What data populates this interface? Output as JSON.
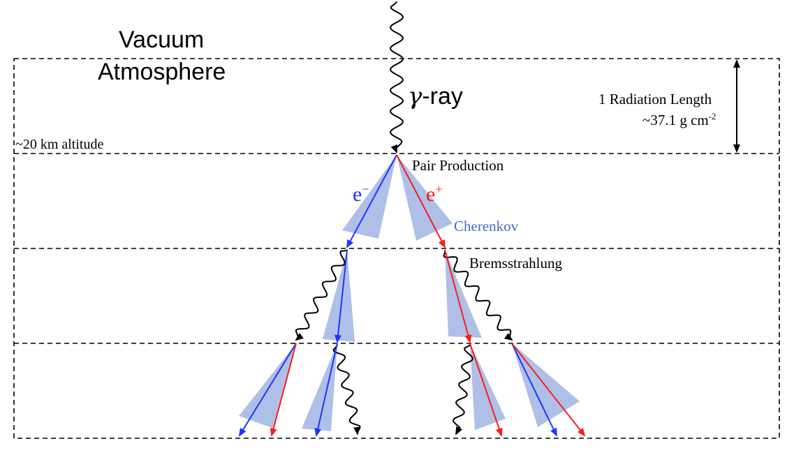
{
  "labels": {
    "vacuum": "Vacuum",
    "atmosphere": "Atmosphere",
    "gamma_symbol": "γ",
    "gamma_rest": "-ray",
    "radiation_length": "1 Radiation Length",
    "depth_value": "~37.1 g cm",
    "depth_exponent": "-2",
    "altitude": "~20 km altitude",
    "pair_production": "Pair Production",
    "electron_base": "e",
    "electron_sign": "−",
    "positron_base": "e",
    "positron_sign": "+",
    "cherenkov": "Cherenkov",
    "bremsstrahlung": "Bremsstrahlung"
  },
  "colors": {
    "electron": "#1f33ff",
    "positron": "#ff1a1a",
    "cone": "#aec0e8",
    "cherenkov_label": "#4a6ccc",
    "photon": "#000000"
  },
  "icons": {
    "photon": "wavy-line-arrow",
    "particle": "straight-arrow",
    "cherenkov_cone": "light-cone",
    "length_marker": "double-headed-arrow"
  }
}
